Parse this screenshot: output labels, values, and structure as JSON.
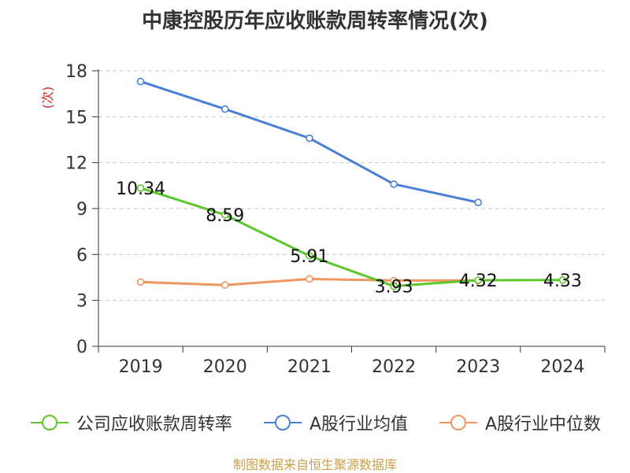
{
  "chart_data": {
    "type": "line",
    "title": "中康控股历年应收账款周转率情况(次)",
    "ylabel": "(次)",
    "categories": [
      "2019",
      "2020",
      "2021",
      "2022",
      "2023",
      "2024"
    ],
    "ylim": [
      0,
      18
    ],
    "yticks": [
      0,
      3,
      6,
      9,
      12,
      15,
      18
    ],
    "grid": true,
    "legend_position": "bottom",
    "series": [
      {
        "name": "公司应收账款周转率",
        "color": "#5bc72a",
        "values": [
          10.34,
          8.59,
          5.91,
          3.93,
          4.32,
          4.33
        ],
        "labels": [
          "10.34",
          "8.59",
          "5.91",
          "3.93",
          "4.32",
          "4.33"
        ]
      },
      {
        "name": "A股行业均值",
        "color": "#4a7fd8",
        "values": [
          17.3,
          15.5,
          13.6,
          10.6,
          9.4,
          null
        ]
      },
      {
        "name": "A股行业中位数",
        "color": "#f0955f",
        "values": [
          4.2,
          4.0,
          4.4,
          4.3,
          4.3,
          null
        ]
      }
    ]
  },
  "source": "制图数据来自恒生聚源数据库"
}
